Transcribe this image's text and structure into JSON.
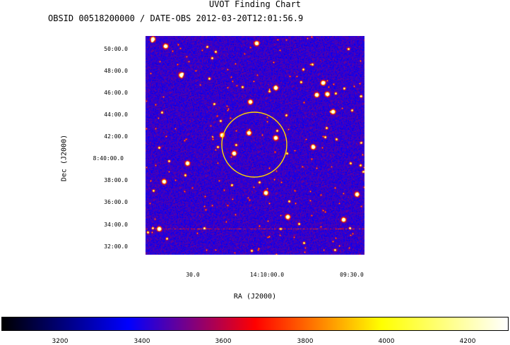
{
  "chart_data": {
    "type": "heatmap",
    "title": "UVOT Finding Chart",
    "subtitle": "OBSID 00518200000 / DATE-OBS 2012-03-20T12:01:56.9",
    "xlabel": "RA (J2000)",
    "ylabel": "Dec (J2000)",
    "x_ticks": [
      "30.0",
      "14:10:00.0",
      "09:30.0"
    ],
    "y_ticks": [
      "50:00.0",
      "48:00.0",
      "46:00.0",
      "44:00.0",
      "42:00.0",
      "8:40:00.0",
      "38:00.0",
      "36:00.0",
      "34:00.0",
      "32:00.0"
    ],
    "colorbar": {
      "ticks": [
        "3200",
        "3400",
        "3600",
        "3800",
        "4000",
        "4200"
      ],
      "values": [
        3200,
        3400,
        3600,
        3800,
        4000,
        4200
      ],
      "range": [
        3060,
        4300
      ],
      "colormap": [
        "#000000",
        "#0000ff",
        "#ff0000",
        "#ffff00",
        "#ffffff"
      ]
    },
    "marker": {
      "shape": "circle",
      "color": "#ffd700"
    }
  }
}
